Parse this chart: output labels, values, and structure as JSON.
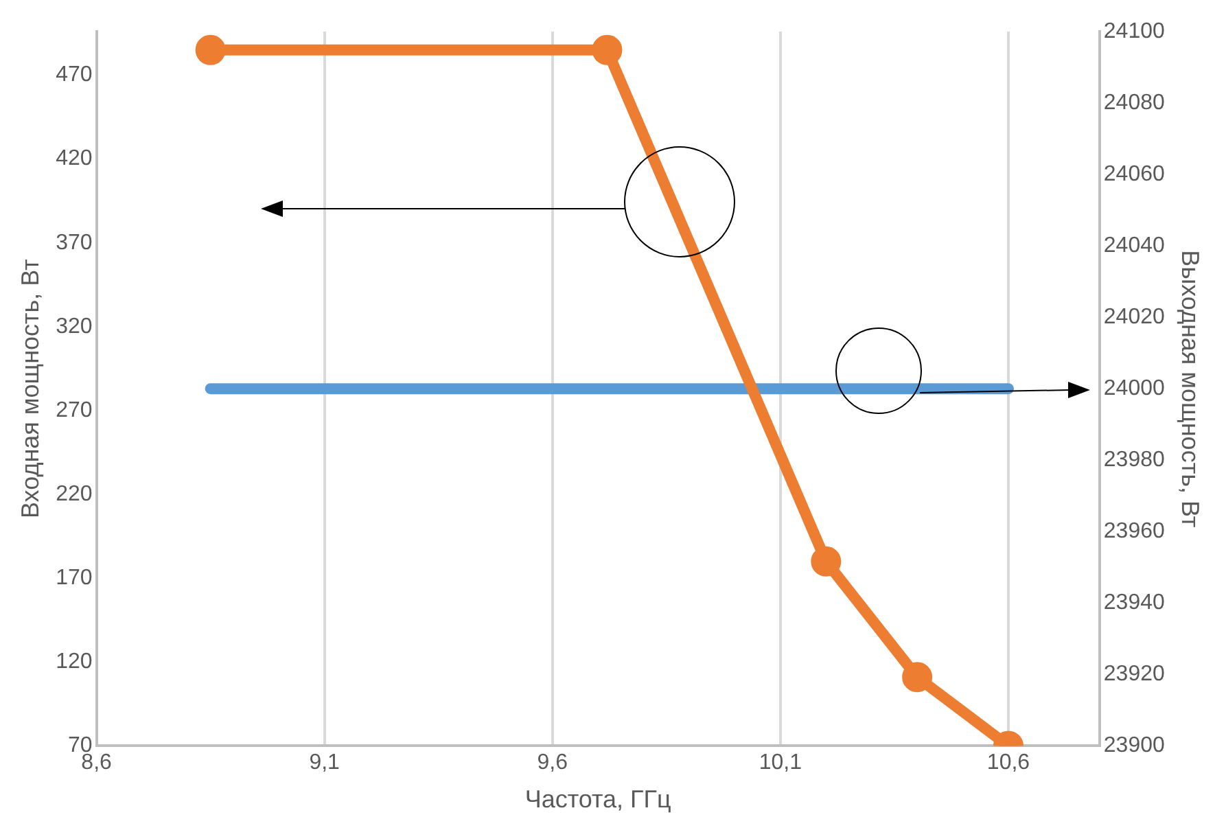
{
  "chart_data": {
    "type": "line",
    "xlabel": "Частота, ГГц",
    "ylabel": "Входная мощность, Вт",
    "y2label": "Выходная мощность, Вт",
    "series": [
      {
        "color": "#ed7d31",
        "x": [
          8.85,
          9.72,
          10.2,
          10.4,
          10.6
        ],
        "values": [
          485,
          485,
          180,
          111,
          70
        ],
        "marker": "circle"
      },
      {
        "color": "#5b9bd5",
        "axis": "y2",
        "x": [
          8.85,
          10.6
        ],
        "values": [
          24000,
          24000
        ],
        "marker": "none"
      }
    ],
    "xlim": [
      8.6,
      10.8
    ],
    "xticks": [
      {
        "value": 8.6,
        "label": "8,6"
      },
      {
        "value": 9.1,
        "label": "9,1"
      },
      {
        "value": 9.6,
        "label": "9,6"
      },
      {
        "value": 10.1,
        "label": "10,1"
      },
      {
        "value": 10.6,
        "label": "10,6"
      }
    ],
    "ylim": [
      70,
      496
    ],
    "yticks": [
      70,
      120,
      170,
      220,
      270,
      320,
      370,
      420,
      470
    ],
    "y2lim": [
      23900,
      24100
    ],
    "y2ticks": [
      23900,
      23920,
      23940,
      23960,
      23980,
      24000,
      24020,
      24040,
      24060,
      24080,
      24100
    ],
    "grid": "x",
    "legend": false,
    "line_style": "solid"
  }
}
